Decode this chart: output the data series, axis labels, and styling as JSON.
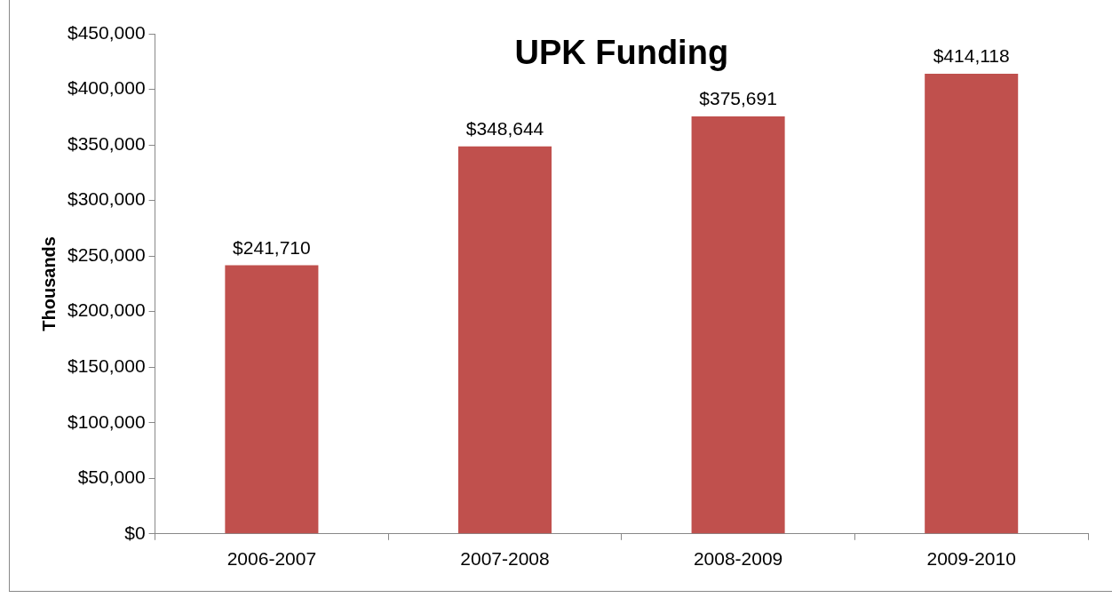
{
  "chart_data": {
    "type": "bar",
    "title": "UPK Funding",
    "ylabel": "Thousands",
    "categories": [
      "2006-2007",
      "2007-2008",
      "2008-2009",
      "2009-2010"
    ],
    "values": [
      241710,
      348644,
      375691,
      414118
    ],
    "value_labels": [
      "$241,710",
      "$348,644",
      "$375,691",
      "$414,118"
    ],
    "color": "#c0504d",
    "ylim": [
      0,
      450000
    ],
    "yticks": [
      {
        "value": 0,
        "label": "$0"
      },
      {
        "value": 50000,
        "label": "$50,000"
      },
      {
        "value": 100000,
        "label": "$100,000"
      },
      {
        "value": 150000,
        "label": "$150,000"
      },
      {
        "value": 200000,
        "label": "$200,000"
      },
      {
        "value": 250000,
        "label": "$250,000"
      },
      {
        "value": 300000,
        "label": "$300,000"
      },
      {
        "value": 350000,
        "label": "$350,000"
      },
      {
        "value": 400000,
        "label": "$400,000"
      },
      {
        "value": 450000,
        "label": "$450,000"
      }
    ],
    "grid": false,
    "legend": false
  }
}
